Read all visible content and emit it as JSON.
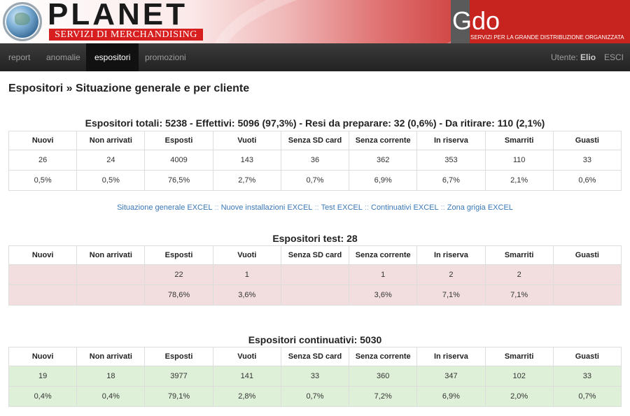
{
  "header": {
    "logo_text": "PLANET",
    "logo_sub": "SERVIZI DI MERCHANDISING",
    "gdo_text": "Gdo",
    "gdo_sub": "SERVIZI PER LA GRANDE DISTRIBUZIONE ORGANIZZATA"
  },
  "nav": {
    "items": [
      "report",
      "anomalie",
      "espositori",
      "promozioni"
    ],
    "active": "espositori",
    "user_label": "Utente:",
    "user_name": "Elio",
    "logout": "ESCI"
  },
  "page_title": "Espositori » Situazione generale e per cliente",
  "columns": [
    "Nuovi",
    "Non arrivati",
    "Esposti",
    "Vuoti",
    "Senza SD card",
    "Senza corrente",
    "In riserva",
    "Smarriti",
    "Guasti"
  ],
  "totals": {
    "title": "Espositori totali: 5238 - Effettivi: 5096 (97,3%) - Resi da preparare: 32 (0,6%) - Da ritirare: 110 (2,1%)",
    "counts": [
      "26",
      "24",
      "4009",
      "143",
      "36",
      "362",
      "353",
      "110",
      "33"
    ],
    "percents": [
      "0,5%",
      "0,5%",
      "76,5%",
      "2,7%",
      "0,7%",
      "6,9%",
      "6,7%",
      "2,1%",
      "0,6%"
    ]
  },
  "excel_links": [
    "Situazione generale EXCEL",
    "Nuove installazioni EXCEL",
    "Test EXCEL",
    "Continuativi EXCEL",
    "Zona grigia EXCEL"
  ],
  "test": {
    "title": "Espositori test: 28",
    "counts": [
      "",
      "",
      "22",
      "1",
      "",
      "1",
      "2",
      "2",
      ""
    ],
    "percents": [
      "",
      "",
      "78,6%",
      "3,6%",
      "",
      "3,6%",
      "7,1%",
      "7,1%",
      ""
    ]
  },
  "continuativi": {
    "title": "Espositori continuativi: 5030",
    "counts": [
      "19",
      "18",
      "3977",
      "141",
      "33",
      "360",
      "347",
      "102",
      "33"
    ],
    "percents": [
      "0,4%",
      "0,4%",
      "79,1%",
      "2,8%",
      "0,7%",
      "7,2%",
      "6,9%",
      "2,0%",
      "0,7%"
    ]
  },
  "colors": {
    "brand_red": "#c7241f",
    "link_blue": "#3a78b8",
    "row_red": "#f2dede",
    "row_green": "#dff0d8"
  }
}
